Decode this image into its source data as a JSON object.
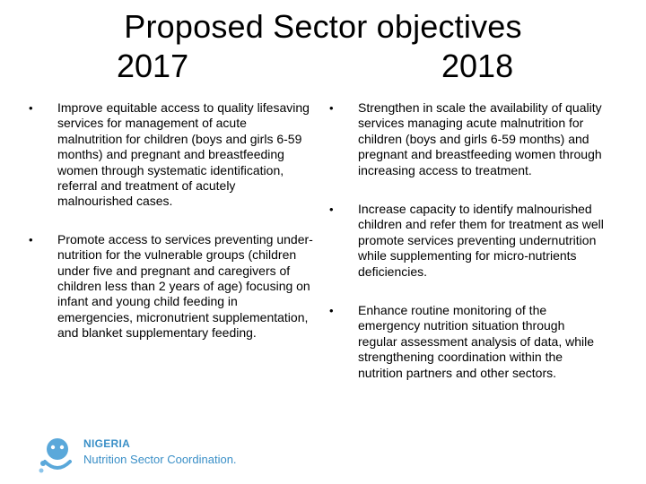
{
  "slide": {
    "title": "Proposed Sector objectives",
    "year_left": "2017",
    "year_right": "2018"
  },
  "left_column": {
    "items": [
      {
        "bullet": "•",
        "text": "Improve equitable access to quality lifesaving services for management of acute malnutrition for children (boys and girls 6-59 months) and pregnant and breastfeeding women through systematic identification, referral and treatment of acutely malnourished cases."
      },
      {
        "bullet": "•",
        "text": "Promote access to services preventing under-nutrition for the vulnerable groups (children under five and pregnant and caregivers of children less than 2 years of age) focusing on infant and young child feeding in emergencies, micronutrient supplementation, and blanket supplementary feeding."
      }
    ]
  },
  "right_column": {
    "items": [
      {
        "bullet": "•",
        "text": "Strengthen in scale the availability of quality services managing acute malnutrition for children (boys and girls 6-59 months) and pregnant and breastfeeding women through increasing access to treatment."
      },
      {
        "bullet": "•",
        "text": "Increase capacity to identify malnourished children and refer them for treatment as well promote services preventing undernutrition while supplementing for micro-nutrients deficiencies."
      },
      {
        "bullet": "•",
        "text": "Enhance routine monitoring of the emergency nutrition situation through regular assessment analysis of data, while strengthening coordination within the nutrition partners and other sectors."
      }
    ]
  },
  "logo": {
    "line1": "NIGERIA",
    "line2": "Nutrition Sector Coordination.",
    "icon": "nutrition-sector-logo-icon",
    "color": "#3a8fc7"
  }
}
